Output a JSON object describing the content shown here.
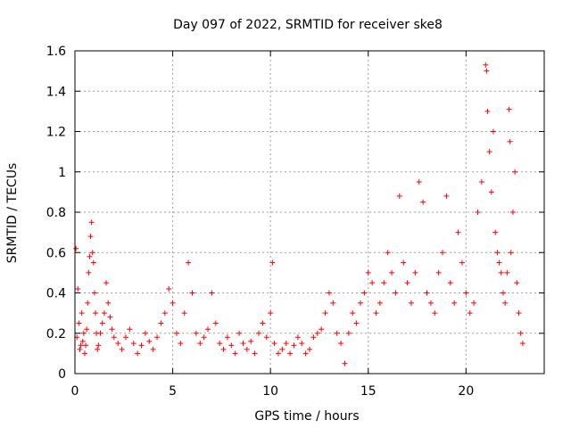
{
  "chart_data": {
    "type": "scatter",
    "title": "Day 097 of 2022, SRMTID for receiver ske8",
    "xlabel": "GPS time / hours",
    "ylabel": "SRMTID / TECUs",
    "xlim": [
      0,
      24
    ],
    "ylim": [
      0,
      1.6
    ],
    "xticks": [
      0,
      5,
      10,
      15,
      20
    ],
    "yticks": [
      0,
      0.2,
      0.4,
      0.6,
      0.8,
      1,
      1.2,
      1.4,
      1.6
    ],
    "xtick_labels": [
      "0",
      "5",
      "10",
      "15",
      "20"
    ],
    "ytick_labels": [
      "0",
      "0.2",
      "0.4",
      "0.6",
      "0.8",
      "1",
      "1.2",
      "1.4",
      "1.6"
    ],
    "grid": true,
    "marker": "+",
    "color": "#ff0000",
    "series": [
      {
        "name": "SRMTID",
        "points": [
          [
            0.05,
            0.62
          ],
          [
            0.1,
            0.18
          ],
          [
            0.15,
            0.42
          ],
          [
            0.2,
            0.25
          ],
          [
            0.25,
            0.12
          ],
          [
            0.3,
            0.14
          ],
          [
            0.35,
            0.3
          ],
          [
            0.4,
            0.16
          ],
          [
            0.45,
            0.2
          ],
          [
            0.5,
            0.1
          ],
          [
            0.55,
            0.14
          ],
          [
            0.6,
            0.22
          ],
          [
            0.65,
            0.35
          ],
          [
            0.7,
            0.5
          ],
          [
            0.75,
            0.58
          ],
          [
            0.8,
            0.68
          ],
          [
            0.85,
            0.75
          ],
          [
            0.9,
            0.6
          ],
          [
            0.95,
            0.55
          ],
          [
            1.0,
            0.4
          ],
          [
            1.05,
            0.3
          ],
          [
            1.1,
            0.2
          ],
          [
            1.15,
            0.12
          ],
          [
            1.2,
            0.14
          ],
          [
            1.3,
            0.2
          ],
          [
            1.4,
            0.25
          ],
          [
            1.5,
            0.3
          ],
          [
            1.6,
            0.45
          ],
          [
            1.7,
            0.35
          ],
          [
            1.8,
            0.28
          ],
          [
            1.9,
            0.22
          ],
          [
            2.0,
            0.18
          ],
          [
            2.2,
            0.15
          ],
          [
            2.4,
            0.12
          ],
          [
            2.6,
            0.18
          ],
          [
            2.8,
            0.22
          ],
          [
            3.0,
            0.15
          ],
          [
            3.2,
            0.1
          ],
          [
            3.4,
            0.14
          ],
          [
            3.6,
            0.2
          ],
          [
            3.8,
            0.16
          ],
          [
            4.0,
            0.12
          ],
          [
            4.2,
            0.18
          ],
          [
            4.4,
            0.25
          ],
          [
            4.6,
            0.3
          ],
          [
            4.8,
            0.42
          ],
          [
            5.0,
            0.35
          ],
          [
            5.2,
            0.2
          ],
          [
            5.4,
            0.15
          ],
          [
            5.6,
            0.3
          ],
          [
            5.8,
            0.55
          ],
          [
            6.0,
            0.4
          ],
          [
            6.2,
            0.2
          ],
          [
            6.4,
            0.15
          ],
          [
            6.6,
            0.18
          ],
          [
            6.8,
            0.22
          ],
          [
            7.0,
            0.4
          ],
          [
            7.2,
            0.25
          ],
          [
            7.4,
            0.15
          ],
          [
            7.6,
            0.12
          ],
          [
            7.8,
            0.18
          ],
          [
            8.0,
            0.14
          ],
          [
            8.2,
            0.1
          ],
          [
            8.4,
            0.2
          ],
          [
            8.6,
            0.15
          ],
          [
            8.8,
            0.12
          ],
          [
            9.0,
            0.16
          ],
          [
            9.2,
            0.1
          ],
          [
            9.4,
            0.2
          ],
          [
            9.6,
            0.25
          ],
          [
            9.8,
            0.18
          ],
          [
            10.0,
            0.3
          ],
          [
            10.1,
            0.55
          ],
          [
            10.2,
            0.15
          ],
          [
            10.4,
            0.1
          ],
          [
            10.6,
            0.12
          ],
          [
            10.8,
            0.15
          ],
          [
            11.0,
            0.1
          ],
          [
            11.2,
            0.14
          ],
          [
            11.4,
            0.18
          ],
          [
            11.6,
            0.15
          ],
          [
            11.8,
            0.1
          ],
          [
            12.0,
            0.12
          ],
          [
            12.2,
            0.18
          ],
          [
            12.4,
            0.2
          ],
          [
            12.6,
            0.22
          ],
          [
            12.8,
            0.3
          ],
          [
            13.0,
            0.4
          ],
          [
            13.2,
            0.35
          ],
          [
            13.4,
            0.2
          ],
          [
            13.6,
            0.15
          ],
          [
            13.8,
            0.05
          ],
          [
            14.0,
            0.2
          ],
          [
            14.2,
            0.3
          ],
          [
            14.4,
            0.25
          ],
          [
            14.6,
            0.35
          ],
          [
            14.8,
            0.4
          ],
          [
            15.0,
            0.5
          ],
          [
            15.2,
            0.45
          ],
          [
            15.4,
            0.3
          ],
          [
            15.6,
            0.35
          ],
          [
            15.8,
            0.45
          ],
          [
            16.0,
            0.6
          ],
          [
            16.2,
            0.5
          ],
          [
            16.4,
            0.4
          ],
          [
            16.6,
            0.88
          ],
          [
            16.8,
            0.55
          ],
          [
            17.0,
            0.45
          ],
          [
            17.2,
            0.35
          ],
          [
            17.4,
            0.5
          ],
          [
            17.6,
            0.95
          ],
          [
            17.8,
            0.85
          ],
          [
            18.0,
            0.4
          ],
          [
            18.2,
            0.35
          ],
          [
            18.4,
            0.3
          ],
          [
            18.6,
            0.5
          ],
          [
            18.8,
            0.6
          ],
          [
            19.0,
            0.88
          ],
          [
            19.2,
            0.45
          ],
          [
            19.4,
            0.35
          ],
          [
            19.6,
            0.7
          ],
          [
            19.8,
            0.55
          ],
          [
            20.0,
            0.4
          ],
          [
            20.2,
            0.3
          ],
          [
            20.4,
            0.35
          ],
          [
            20.6,
            0.8
          ],
          [
            20.8,
            0.95
          ],
          [
            21.0,
            1.53
          ],
          [
            21.05,
            1.5
          ],
          [
            21.1,
            1.3
          ],
          [
            21.2,
            1.1
          ],
          [
            21.3,
            0.9
          ],
          [
            21.4,
            1.2
          ],
          [
            21.5,
            0.7
          ],
          [
            21.6,
            0.6
          ],
          [
            21.7,
            0.55
          ],
          [
            21.8,
            0.5
          ],
          [
            21.9,
            0.4
          ],
          [
            22.0,
            0.35
          ],
          [
            22.1,
            0.5
          ],
          [
            22.2,
            1.31
          ],
          [
            22.25,
            1.15
          ],
          [
            22.3,
            0.6
          ],
          [
            22.4,
            0.8
          ],
          [
            22.5,
            1.0
          ],
          [
            22.6,
            0.45
          ],
          [
            22.7,
            0.3
          ],
          [
            22.8,
            0.2
          ],
          [
            22.9,
            0.15
          ]
        ]
      }
    ]
  }
}
